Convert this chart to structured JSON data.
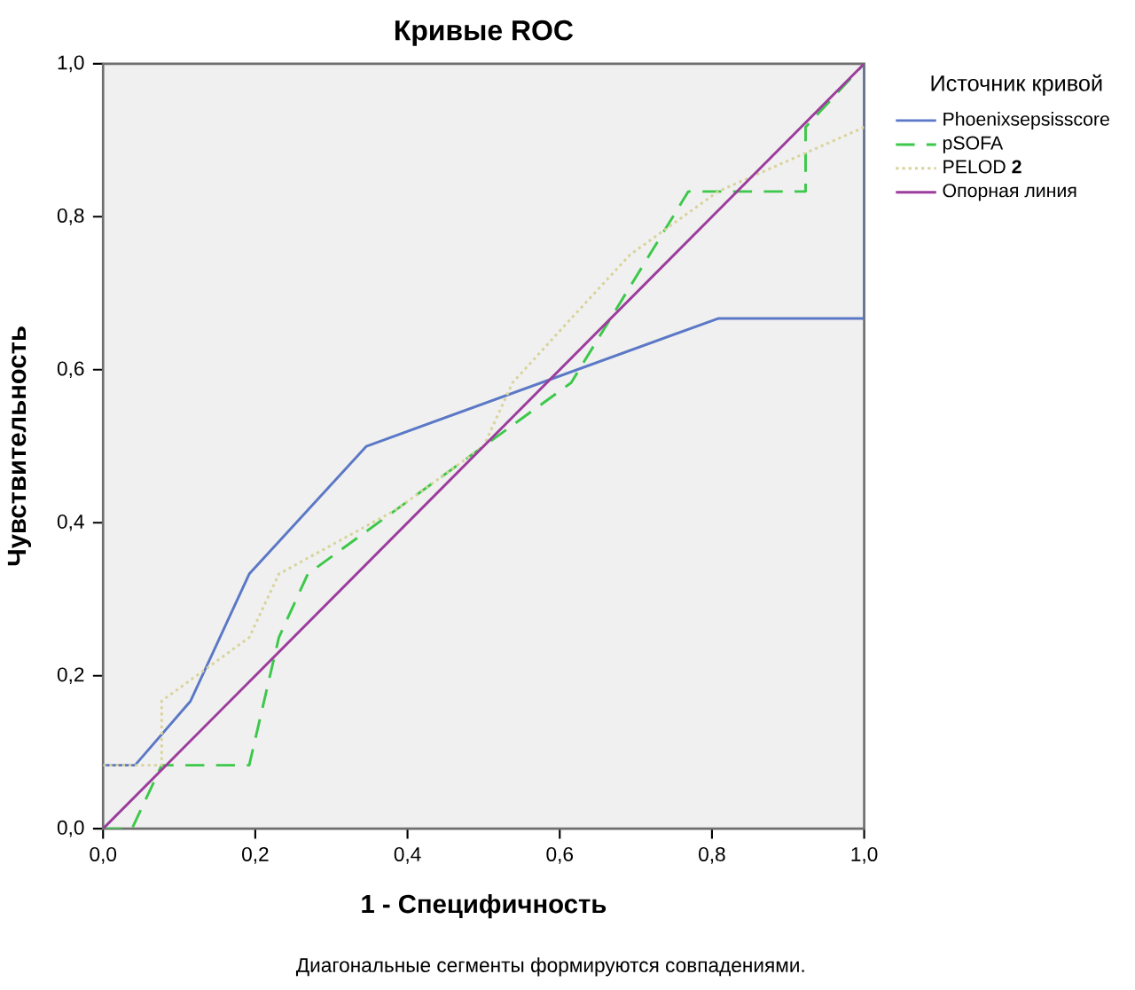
{
  "chart_data": {
    "type": "line",
    "title": "Кривые ROC",
    "xlabel": "1 - Специфичность",
    "ylabel": "Чувствительность",
    "legend_title": "Источник кривой",
    "legend": "right",
    "grid": false,
    "marker": "none",
    "xlim": [
      0,
      1
    ],
    "ylim": [
      0,
      1
    ],
    "xticks": [
      {
        "value": 0,
        "label": "0,0"
      },
      {
        "value": 0.2,
        "label": "0,2"
      },
      {
        "value": 0.4,
        "label": "0,4"
      },
      {
        "value": 0.6,
        "label": "0,6"
      },
      {
        "value": 0.8,
        "label": "0,8"
      },
      {
        "value": 1,
        "label": "1,0"
      }
    ],
    "yticks": [
      {
        "value": 0,
        "label": "0,0"
      },
      {
        "value": 0.2,
        "label": "0,2"
      },
      {
        "value": 0.4,
        "label": "0,4"
      },
      {
        "value": 0.6,
        "label": "0,6"
      },
      {
        "value": 0.8,
        "label": "0,8"
      },
      {
        "value": 1,
        "label": "1,0"
      }
    ],
    "series": [
      {
        "name": "Phoenixsepsisscore",
        "color": "#5b78c6",
        "line_style": "solid",
        "x": [
          0,
          0.042,
          0.115,
          0.192,
          0.346,
          0.808,
          1,
          1
        ],
        "values": [
          0.083,
          0.083,
          0.167,
          0.333,
          0.5,
          0.667,
          0.667,
          1
        ]
      },
      {
        "name": "pSOFA",
        "color": "#3cc84a",
        "line_style": "dashed",
        "x": [
          0,
          0.038,
          0.077,
          0.192,
          0.231,
          0.269,
          0.385,
          0.5,
          0.615,
          0.692,
          0.769,
          0.923,
          0.923,
          1
        ],
        "values": [
          0,
          0,
          0.083,
          0.083,
          0.25,
          0.333,
          0.417,
          0.5,
          0.583,
          0.708,
          0.833,
          0.833,
          0.917,
          1
        ]
      },
      {
        "name": "PELOD **2**",
        "color": "#d8d39a",
        "line_style": "dotted",
        "x": [
          0,
          0.077,
          0.077,
          0.192,
          0.231,
          0.385,
          0.5,
          0.538,
          0.615,
          0.692,
          0.808,
          1
        ],
        "values": [
          0.083,
          0.083,
          0.167,
          0.25,
          0.333,
          0.417,
          0.5,
          0.583,
          0.667,
          0.75,
          0.833,
          0.917
        ]
      },
      {
        "name": "Опорная линия",
        "color": "#9c3c9c",
        "line_style": "solid",
        "x": [
          0,
          1
        ],
        "values": [
          0,
          1
        ]
      }
    ],
    "annotations": [
      "Диагональные сегменты формируются совпадениями."
    ]
  }
}
